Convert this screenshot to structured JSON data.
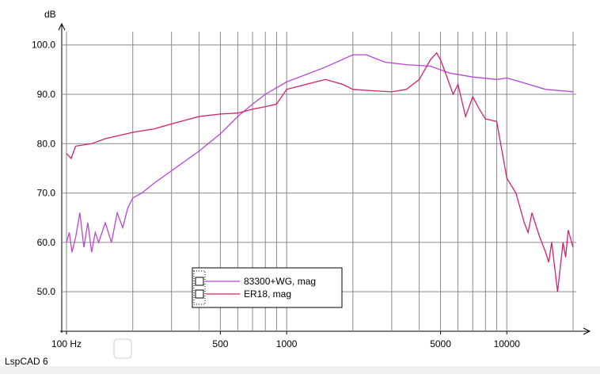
{
  "chart_data": {
    "type": "line",
    "y_label": "dB",
    "app_label": "LspCAD 6",
    "xscale": "log",
    "xlim": [
      100,
      20000
    ],
    "ylim": [
      42,
      103
    ],
    "xticks": [
      {
        "value": 100,
        "label": "100 Hz"
      },
      500,
      1000,
      5000,
      10000
    ],
    "xgrid": [
      100,
      200,
      300,
      400,
      500,
      600,
      700,
      800,
      900,
      1000,
      2000,
      3000,
      4000,
      5000,
      6000,
      7000,
      8000,
      9000,
      10000,
      20000
    ],
    "yticks": [
      {
        "value": 50,
        "label": "50.0"
      },
      {
        "value": 60,
        "label": "60.0"
      },
      {
        "value": 70,
        "label": "70.0"
      },
      {
        "value": 80,
        "label": "80.0"
      },
      {
        "value": 90,
        "label": "90.0"
      },
      {
        "value": 100,
        "label": "100.0"
      }
    ],
    "grid": true,
    "series": [
      {
        "name": "83300+WG, mag",
        "color": "#b845d6",
        "x": [
          100,
          103,
          106,
          110,
          115,
          120,
          125,
          130,
          135,
          140,
          150,
          160,
          170,
          180,
          190,
          200,
          220,
          250,
          300,
          400,
          500,
          600,
          700,
          800,
          1000,
          1500,
          2000,
          2300,
          2800,
          3500,
          4500,
          5500,
          7000,
          9000,
          10000,
          12000,
          15000,
          20000
        ],
        "values": [
          60,
          62,
          58,
          61,
          66,
          59,
          64,
          58,
          62,
          60,
          64,
          60,
          66,
          63,
          67,
          69,
          70,
          72,
          74.5,
          78.5,
          82,
          85.5,
          88,
          90,
          92.5,
          95.5,
          98,
          98,
          96.5,
          96,
          95.7,
          94.3,
          93.5,
          93,
          93.3,
          92.3,
          91,
          90.5
        ]
      },
      {
        "name": "ER18, mag",
        "color": "#d41f6c",
        "x": [
          100,
          105,
          110,
          130,
          150,
          200,
          250,
          300,
          400,
          500,
          600,
          700,
          800,
          900,
          1000,
          1500,
          1800,
          2000,
          2500,
          3000,
          3500,
          4000,
          4500,
          4800,
          5000,
          5300,
          5700,
          6000,
          6500,
          7000,
          7500,
          8000,
          9000,
          10000,
          11000,
          12000,
          12500,
          13000,
          14000,
          15000,
          15500,
          16000,
          17000,
          18000,
          18500,
          19000,
          20000
        ],
        "values": [
          78,
          77,
          79.5,
          80,
          81,
          82.3,
          83,
          84,
          85.5,
          86,
          86.2,
          87,
          87.5,
          88,
          91,
          93,
          92,
          91,
          90.7,
          90.5,
          91,
          93,
          97,
          98.4,
          97,
          94,
          90,
          92,
          85.5,
          89.5,
          87,
          85,
          84.5,
          73,
          70,
          64,
          62,
          66,
          61.5,
          58,
          56,
          60,
          50,
          60,
          57,
          62.5,
          59
        ]
      }
    ]
  }
}
